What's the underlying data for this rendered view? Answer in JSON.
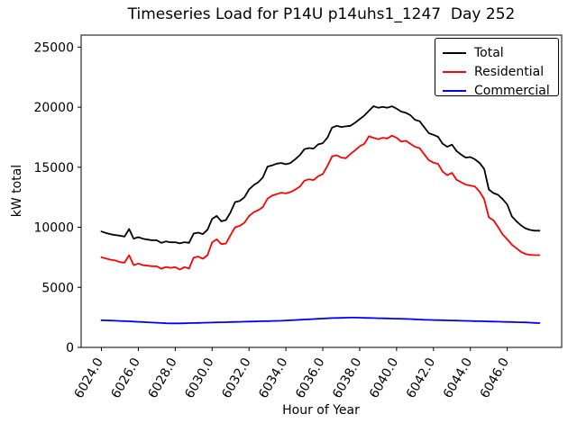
{
  "chart_data": {
    "type": "line",
    "title": "Timeseries Load for P14U p14uhs1_1247  Day 252",
    "xlabel": "Hour of Year",
    "ylabel": "kW total",
    "x_start": 6024.0,
    "x_step": 0.25,
    "x_end": 6047.75,
    "xlim": [
      6022.9,
      6048.95
    ],
    "ylim": [
      0,
      26000
    ],
    "grid": false,
    "legend_position": "upper right",
    "x_ticks": {
      "values": [
        6024,
        6026,
        6028,
        6030,
        6032,
        6034,
        6036,
        6038,
        6040,
        6042,
        6044,
        6046
      ],
      "labels": [
        "6024.0",
        "6026.0",
        "6028.0",
        "6030.0",
        "6032.0",
        "6034.0",
        "6036.0",
        "6038.0",
        "6040.0",
        "6042.0",
        "6044.0",
        "6046.0"
      ],
      "rotation_deg": 60
    },
    "y_ticks": {
      "values": [
        0,
        5000,
        10000,
        15000,
        20000,
        25000
      ],
      "labels": [
        "0",
        "5000",
        "10000",
        "15000",
        "20000",
        "25000"
      ]
    },
    "series": [
      {
        "name": "Total",
        "color": "#000000",
        "values": [
          9650,
          9520,
          9420,
          9350,
          9300,
          9220,
          9850,
          9050,
          9180,
          9050,
          8980,
          8920,
          8920,
          8700,
          8830,
          8750,
          8760,
          8660,
          8760,
          8710,
          9480,
          9550,
          9430,
          9800,
          10700,
          10950,
          10500,
          10600,
          11250,
          12100,
          12200,
          12500,
          13150,
          13500,
          13750,
          14150,
          15050,
          15150,
          15300,
          15350,
          15250,
          15350,
          15650,
          16000,
          16500,
          16600,
          16550,
          16900,
          17000,
          17450,
          18300,
          18450,
          18350,
          18400,
          18450,
          18700,
          19000,
          19300,
          19700,
          20080,
          19950,
          20030,
          19950,
          20070,
          19880,
          19630,
          19530,
          19330,
          18950,
          18830,
          18330,
          17830,
          17700,
          17530,
          16950,
          16700,
          16880,
          16350,
          16050,
          15800,
          15850,
          15650,
          15350,
          14850,
          13150,
          12850,
          12700,
          12350,
          11900,
          10900,
          10500,
          10150,
          9900,
          9780,
          9720,
          9720
        ]
      },
      {
        "name": "Residential",
        "color": "#ff0000",
        "values": [
          7500,
          7400,
          7300,
          7240,
          7100,
          7050,
          7670,
          6850,
          6980,
          6850,
          6800,
          6750,
          6750,
          6550,
          6700,
          6620,
          6680,
          6490,
          6680,
          6560,
          7480,
          7560,
          7380,
          7680,
          8750,
          9000,
          8600,
          8650,
          9350,
          10000,
          10120,
          10380,
          10930,
          11250,
          11430,
          11680,
          12380,
          12630,
          12760,
          12880,
          12820,
          12930,
          13130,
          13380,
          13880,
          14000,
          13930,
          14250,
          14430,
          15100,
          15900,
          16000,
          15800,
          15750,
          16100,
          16400,
          16750,
          16950,
          17580,
          17450,
          17330,
          17450,
          17400,
          17630,
          17450,
          17130,
          17200,
          16950,
          16700,
          16580,
          16080,
          15580,
          15380,
          15280,
          14630,
          14330,
          14530,
          13960,
          13750,
          13550,
          13480,
          13400,
          12960,
          12330,
          10830,
          10580,
          10030,
          9400,
          9000,
          8550,
          8250,
          7950,
          7770,
          7700,
          7680,
          7680
        ]
      },
      {
        "name": "Commercial",
        "color": "#0000ff",
        "values": [
          2260,
          2250,
          2230,
          2220,
          2200,
          2190,
          2170,
          2150,
          2130,
          2110,
          2090,
          2070,
          2050,
          2030,
          2010,
          2000,
          2000,
          2000,
          2010,
          2020,
          2030,
          2040,
          2050,
          2060,
          2070,
          2080,
          2090,
          2100,
          2110,
          2120,
          2130,
          2140,
          2150,
          2160,
          2170,
          2180,
          2190,
          2200,
          2210,
          2220,
          2240,
          2260,
          2280,
          2300,
          2320,
          2340,
          2360,
          2380,
          2400,
          2420,
          2440,
          2450,
          2460,
          2470,
          2480,
          2480,
          2470,
          2460,
          2450,
          2440,
          2430,
          2420,
          2410,
          2400,
          2390,
          2380,
          2370,
          2360,
          2340,
          2320,
          2300,
          2290,
          2280,
          2270,
          2260,
          2250,
          2240,
          2230,
          2220,
          2210,
          2200,
          2190,
          2180,
          2170,
          2160,
          2150,
          2140,
          2130,
          2120,
          2110,
          2100,
          2090,
          2080,
          2060,
          2040,
          2020
        ]
      }
    ]
  }
}
